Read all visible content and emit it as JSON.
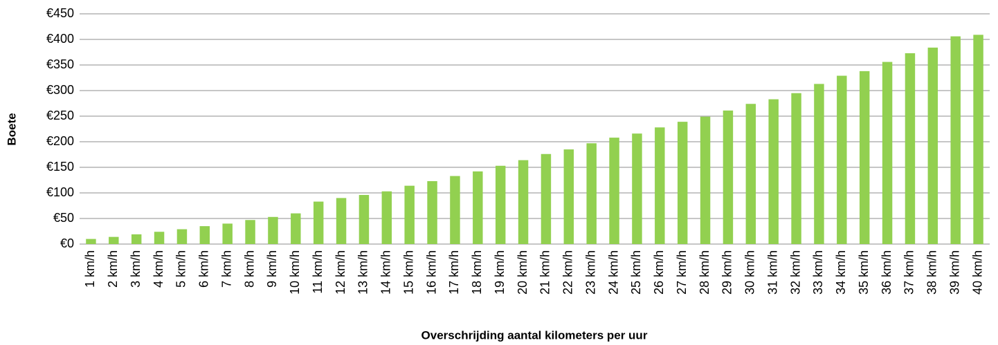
{
  "chart_data": {
    "type": "bar",
    "y_label": "Boete",
    "x_label": "Overschrijding aantal kilometers per uur",
    "categories": [
      "1 km/h",
      "2 km/h",
      "3 km/h",
      "4 km/h",
      "5 km/h",
      "6 km/h",
      "7 km/h",
      "8 km/h",
      "9 km/h",
      "10 km/h",
      "11 km/h",
      "12 km/h",
      "13 km/h",
      "14 km/h",
      "15 km/h",
      "16 km/h",
      "17 km/h",
      "18 km/h",
      "19 km/h",
      "20 km/h",
      "21 km/h",
      "22 km/h",
      "23 km/h",
      "24 km/h",
      "25 km/h",
      "26 km/h",
      "27 km/h",
      "28 km/h",
      "29 km/h",
      "30 km/h",
      "31 km/h",
      "32 km/h",
      "33 km/h",
      "34 km/h",
      "35 km/h",
      "36 km/h",
      "37 km/h",
      "38 km/h",
      "39 km/h",
      "40 km/h"
    ],
    "values": [
      10,
      14,
      19,
      24,
      29,
      35,
      40,
      47,
      53,
      60,
      83,
      90,
      96,
      103,
      114,
      123,
      133,
      142,
      153,
      164,
      176,
      185,
      197,
      208,
      216,
      228,
      239,
      249,
      261,
      274,
      283,
      295,
      313,
      329,
      338,
      356,
      373,
      384,
      406,
      409
    ],
    "color": "#92d050",
    "ylim": [
      0,
      450
    ],
    "yticks": [
      {
        "value": 0,
        "label": "€0"
      },
      {
        "value": 50,
        "label": "€50"
      },
      {
        "value": 100,
        "label": "€100"
      },
      {
        "value": 150,
        "label": "€150"
      },
      {
        "value": 200,
        "label": "€200"
      },
      {
        "value": 250,
        "label": "€250"
      },
      {
        "value": 300,
        "label": "€300"
      },
      {
        "value": 350,
        "label": "€350"
      },
      {
        "value": 400,
        "label": "€400"
      },
      {
        "value": 450,
        "label": "€450"
      }
    ],
    "grid": true
  }
}
